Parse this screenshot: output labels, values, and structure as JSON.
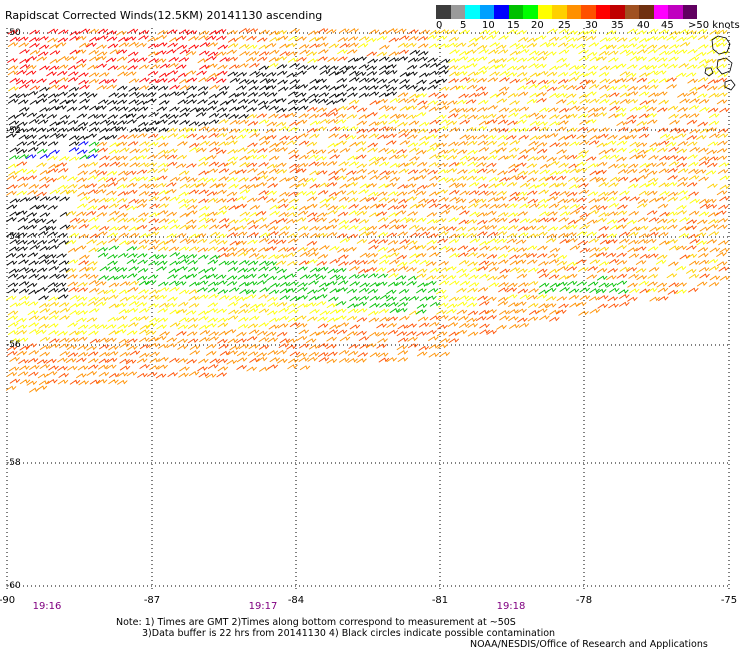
{
  "title": "Rapidscat Corrected Winds(12.5KM) 20141130 ascending",
  "colorbar": {
    "colors": [
      "#3c3c3c",
      "#9a9a9a",
      "#00ffff",
      "#00a0ff",
      "#0000ff",
      "#00c000",
      "#00ff00",
      "#ffff00",
      "#ffd000",
      "#ff9000",
      "#ff5000",
      "#ff0000",
      "#c00000",
      "#a05020",
      "#703010",
      "#ff00ff",
      "#c000c0",
      "#600060"
    ],
    "labels": [
      "0",
      "5",
      "10",
      "15",
      "20",
      "25",
      "30",
      "35",
      "40",
      "45",
      ">50 knots"
    ]
  },
  "map": {
    "lat_labels": [
      "-50",
      "-52",
      "-54",
      "-56",
      "-58",
      "-60"
    ],
    "lon_labels": [
      "-90",
      "-87",
      "-84",
      "-81",
      "-78",
      "-75"
    ],
    "time_labels": [
      "19:16",
      "19:17",
      "19:18"
    ]
  },
  "notes": {
    "line1": "Note: 1) Times are GMT 2)Times along bottom correspond to measurement at ~50S",
    "line2": "3)Data buffer is 22 hrs from 20141130 4) Black circles indicate possible contamination"
  },
  "credit": "NOAA/NESDIS/Office of Research and Applications"
}
